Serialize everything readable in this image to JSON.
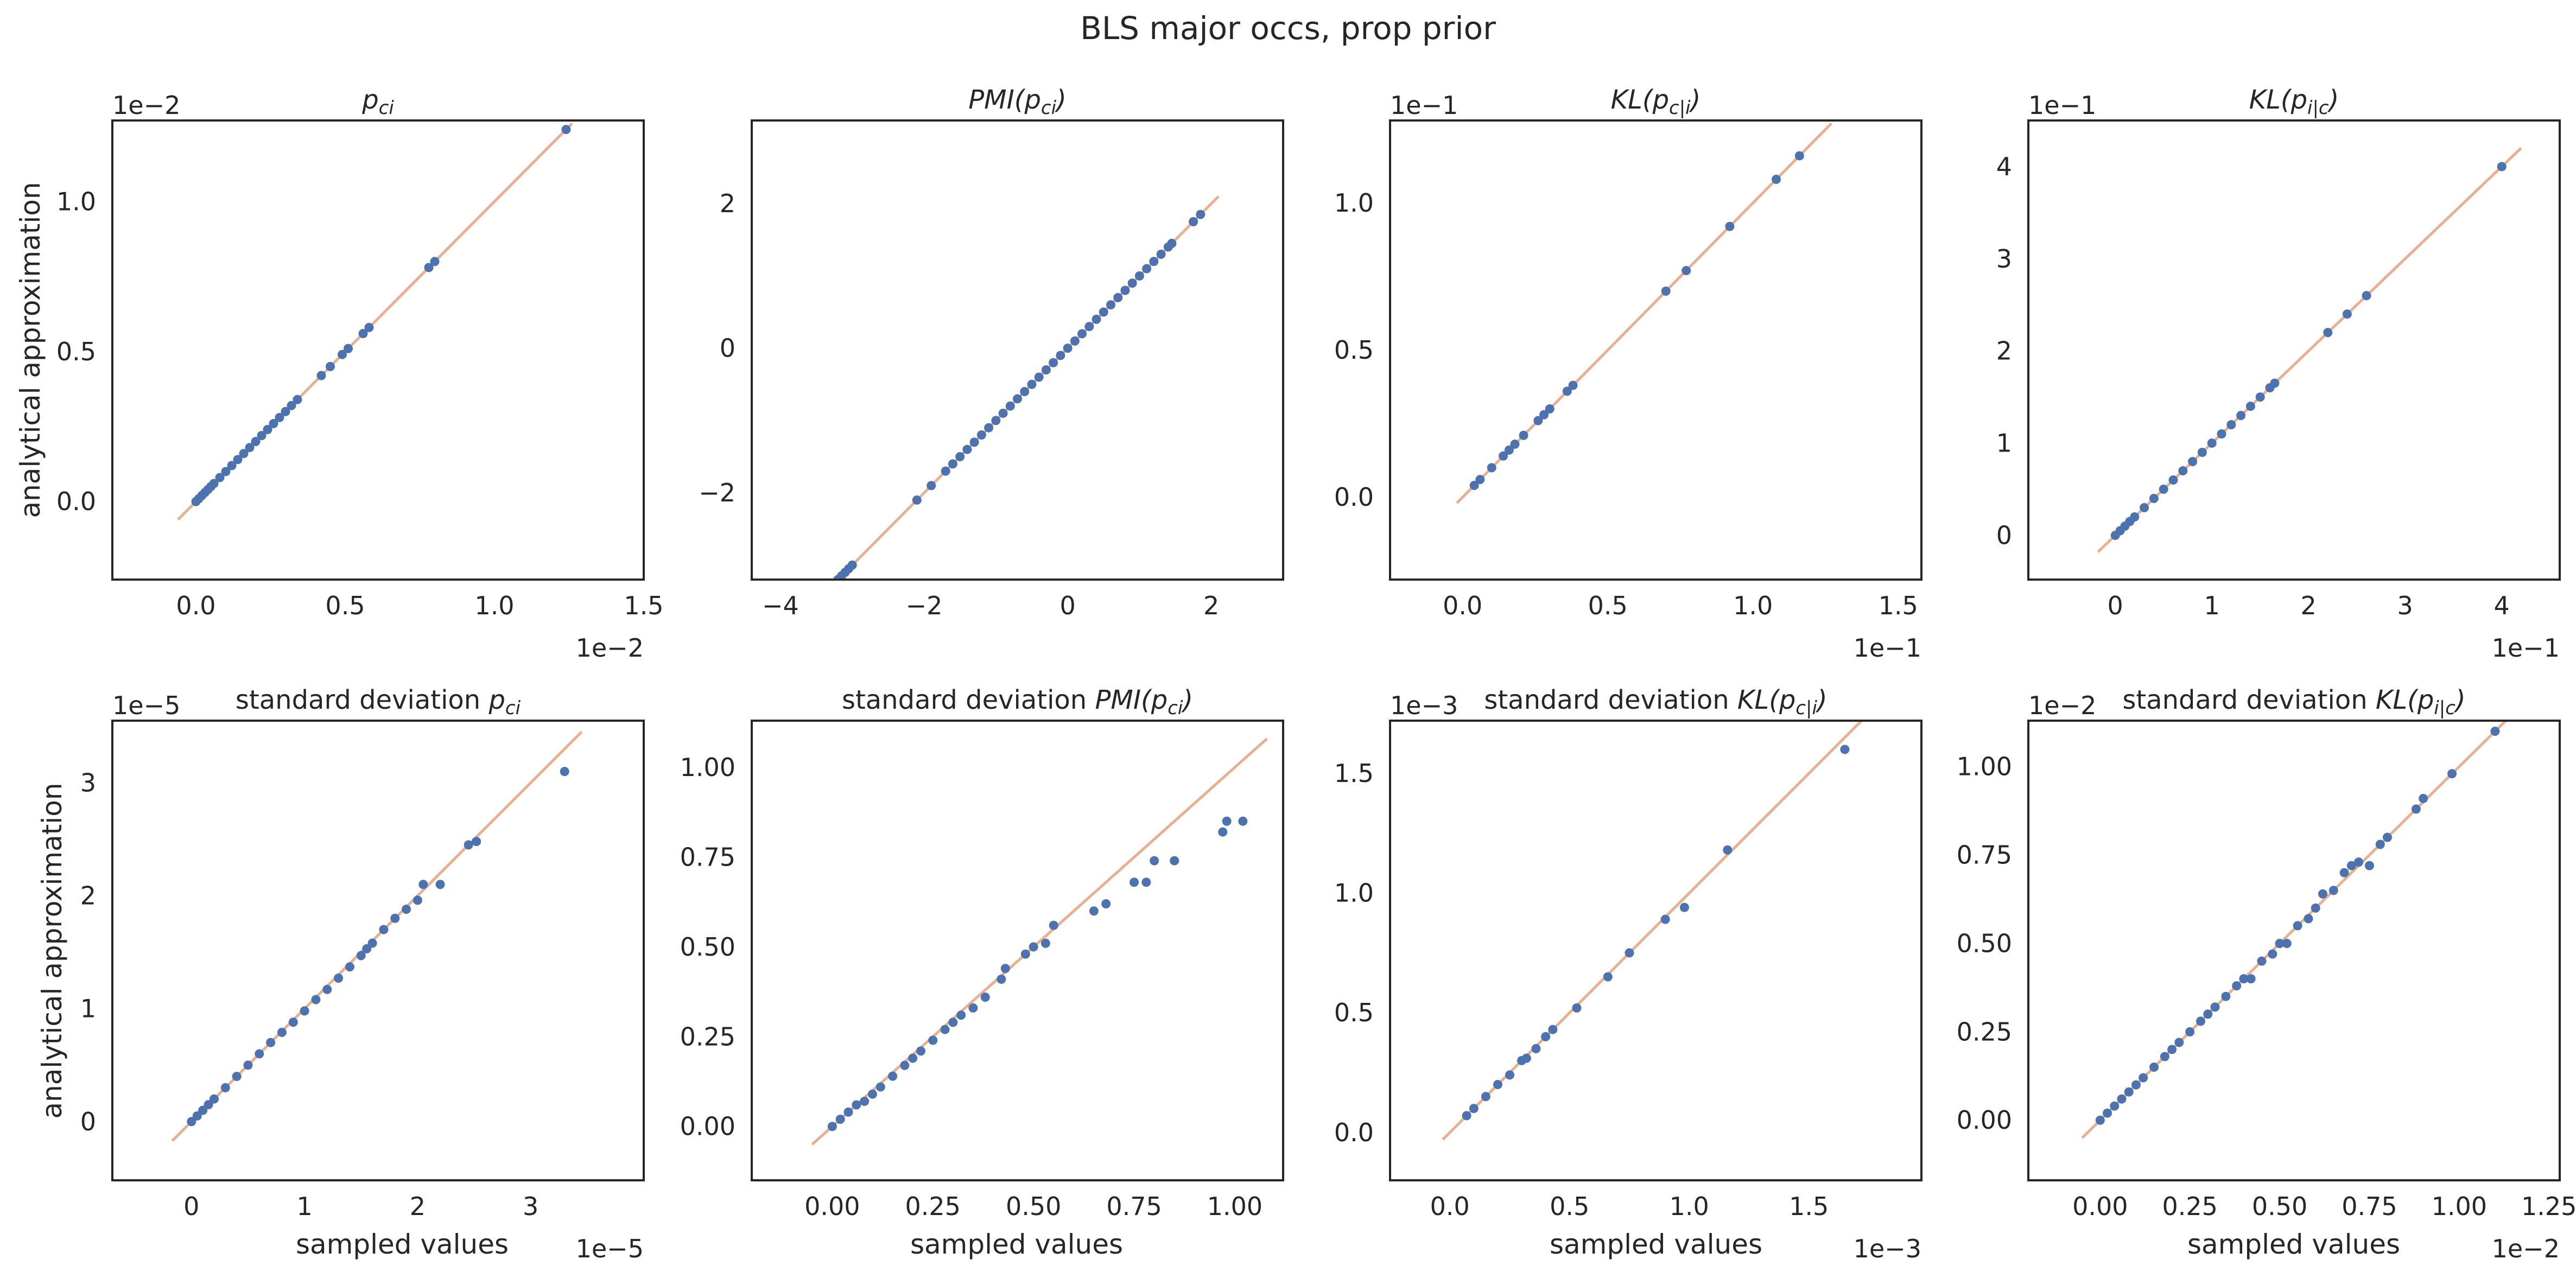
{
  "figure": {
    "suptitle": "BLS major occs, prop prior",
    "ylabel": "analytical approximation",
    "xlabel": "sampled values"
  },
  "colors": {
    "point": "#4c72b0",
    "diagonal": "#dd8452",
    "frame": "#262626"
  },
  "chart_data": [
    {
      "type": "scatter",
      "title": "p_ci",
      "x_scale_label": "1e−2",
      "y_scale_label": "1e−2",
      "xlim": [
        -0.28,
        1.5
      ],
      "ylim": [
        -0.26,
        1.27
      ],
      "xticks": [
        0.0,
        0.5,
        1.0,
        1.5
      ],
      "xtick_labels": [
        "0.0",
        "0.5",
        "1.0",
        "1.5"
      ],
      "yticks": [
        0.0,
        0.5,
        1.0
      ],
      "ytick_labels": [
        "0.0",
        "0.5",
        "1.0"
      ],
      "diag": [
        -0.06,
        1.26
      ],
      "points": [
        [
          0.0,
          0.0
        ],
        [
          0.01,
          0.01
        ],
        [
          0.02,
          0.02
        ],
        [
          0.03,
          0.03
        ],
        [
          0.04,
          0.04
        ],
        [
          0.05,
          0.05
        ],
        [
          0.06,
          0.06
        ],
        [
          0.08,
          0.08
        ],
        [
          0.1,
          0.1
        ],
        [
          0.12,
          0.12
        ],
        [
          0.14,
          0.14
        ],
        [
          0.16,
          0.16
        ],
        [
          0.18,
          0.18
        ],
        [
          0.2,
          0.2
        ],
        [
          0.22,
          0.22
        ],
        [
          0.24,
          0.24
        ],
        [
          0.26,
          0.26
        ],
        [
          0.28,
          0.28
        ],
        [
          0.3,
          0.3
        ],
        [
          0.32,
          0.32
        ],
        [
          0.34,
          0.34
        ],
        [
          0.42,
          0.42
        ],
        [
          0.45,
          0.45
        ],
        [
          0.49,
          0.49
        ],
        [
          0.51,
          0.51
        ],
        [
          0.56,
          0.56
        ],
        [
          0.58,
          0.58
        ],
        [
          0.78,
          0.78
        ],
        [
          0.8,
          0.8
        ],
        [
          1.24,
          1.24
        ]
      ]
    },
    {
      "type": "scatter",
      "title": "PMI(p_ci)",
      "x_scale_label": "",
      "y_scale_label": "",
      "xlim": [
        -4.4,
        3.0
      ],
      "ylim": [
        -3.2,
        3.15
      ],
      "xticks": [
        -4,
        -2,
        0,
        2
      ],
      "xtick_labels": [
        "−4",
        "−2",
        "0",
        "2"
      ],
      "yticks": [
        -2,
        0,
        2
      ],
      "ytick_labels": [
        "−2",
        "0",
        "2"
      ],
      "diag": [
        -3.3,
        2.1
      ],
      "points": [
        [
          -3.3,
          -3.3
        ],
        [
          -3.25,
          -3.25
        ],
        [
          -3.2,
          -3.2
        ],
        [
          -3.15,
          -3.15
        ],
        [
          -3.1,
          -3.1
        ],
        [
          -3.05,
          -3.05
        ],
        [
          -3.0,
          -3.0
        ],
        [
          -2.1,
          -2.1
        ],
        [
          -1.9,
          -1.9
        ],
        [
          -1.7,
          -1.7
        ],
        [
          -1.6,
          -1.6
        ],
        [
          -1.5,
          -1.5
        ],
        [
          -1.4,
          -1.4
        ],
        [
          -1.3,
          -1.3
        ],
        [
          -1.2,
          -1.2
        ],
        [
          -1.1,
          -1.1
        ],
        [
          -1.0,
          -1.0
        ],
        [
          -0.9,
          -0.9
        ],
        [
          -0.8,
          -0.8
        ],
        [
          -0.7,
          -0.7
        ],
        [
          -0.6,
          -0.6
        ],
        [
          -0.5,
          -0.5
        ],
        [
          -0.4,
          -0.4
        ],
        [
          -0.3,
          -0.3
        ],
        [
          -0.2,
          -0.2
        ],
        [
          -0.1,
          -0.1
        ],
        [
          0.0,
          0.0
        ],
        [
          0.1,
          0.1
        ],
        [
          0.2,
          0.2
        ],
        [
          0.3,
          0.3
        ],
        [
          0.4,
          0.4
        ],
        [
          0.5,
          0.5
        ],
        [
          0.6,
          0.6
        ],
        [
          0.7,
          0.7
        ],
        [
          0.8,
          0.8
        ],
        [
          0.9,
          0.9
        ],
        [
          1.0,
          1.0
        ],
        [
          1.1,
          1.1
        ],
        [
          1.2,
          1.2
        ],
        [
          1.3,
          1.3
        ],
        [
          1.4,
          1.4
        ],
        [
          1.45,
          1.45
        ],
        [
          1.75,
          1.75
        ],
        [
          1.85,
          1.85
        ]
      ]
    },
    {
      "type": "scatter",
      "title": "KL(p_c|i)",
      "x_scale_label": "1e−1",
      "y_scale_label": "1e−1",
      "xlim": [
        -0.25,
        1.58
      ],
      "ylim": [
        -0.28,
        1.28
      ],
      "xticks": [
        0.0,
        0.5,
        1.0,
        1.5
      ],
      "xtick_labels": [
        "0.0",
        "0.5",
        "1.0",
        "1.5"
      ],
      "yticks": [
        0.0,
        0.5,
        1.0
      ],
      "ytick_labels": [
        "0.0",
        "0.5",
        "1.0"
      ],
      "diag": [
        -0.02,
        1.27
      ],
      "points": [
        [
          0.04,
          0.04
        ],
        [
          0.06,
          0.06
        ],
        [
          0.1,
          0.1
        ],
        [
          0.14,
          0.14
        ],
        [
          0.16,
          0.16
        ],
        [
          0.18,
          0.18
        ],
        [
          0.21,
          0.21
        ],
        [
          0.26,
          0.26
        ],
        [
          0.28,
          0.28
        ],
        [
          0.3,
          0.3
        ],
        [
          0.36,
          0.36
        ],
        [
          0.38,
          0.38
        ],
        [
          0.7,
          0.7
        ],
        [
          0.77,
          0.77
        ],
        [
          0.92,
          0.92
        ],
        [
          1.08,
          1.08
        ],
        [
          1.16,
          1.16
        ]
      ]
    },
    {
      "type": "scatter",
      "title": "KL(p_i|c)",
      "x_scale_label": "1e−1",
      "y_scale_label": "1e−1",
      "xlim": [
        -0.9,
        4.6
      ],
      "ylim": [
        -0.48,
        4.5
      ],
      "xticks": [
        0,
        1,
        2,
        3,
        4
      ],
      "xtick_labels": [
        "0",
        "1",
        "2",
        "3",
        "4"
      ],
      "yticks": [
        0,
        1,
        2,
        3,
        4
      ],
      "ytick_labels": [
        "0",
        "1",
        "2",
        "3",
        "4"
      ],
      "diag": [
        -0.18,
        4.2
      ],
      "points": [
        [
          0.0,
          0.0
        ],
        [
          0.05,
          0.05
        ],
        [
          0.1,
          0.1
        ],
        [
          0.15,
          0.15
        ],
        [
          0.2,
          0.2
        ],
        [
          0.3,
          0.3
        ],
        [
          0.4,
          0.4
        ],
        [
          0.5,
          0.5
        ],
        [
          0.6,
          0.6
        ],
        [
          0.7,
          0.7
        ],
        [
          0.8,
          0.8
        ],
        [
          0.9,
          0.9
        ],
        [
          1.0,
          1.0
        ],
        [
          1.1,
          1.1
        ],
        [
          1.2,
          1.2
        ],
        [
          1.3,
          1.3
        ],
        [
          1.4,
          1.4
        ],
        [
          1.5,
          1.5
        ],
        [
          1.6,
          1.6
        ],
        [
          1.65,
          1.65
        ],
        [
          2.2,
          2.2
        ],
        [
          2.4,
          2.4
        ],
        [
          2.6,
          2.6
        ],
        [
          4.0,
          4.0
        ]
      ]
    },
    {
      "type": "scatter",
      "title": "standard deviation p_ci",
      "x_scale_label": "1e−5",
      "y_scale_label": "1e−5",
      "xlim": [
        -0.7,
        4.0
      ],
      "ylim": [
        -0.52,
        3.55
      ],
      "xticks": [
        0,
        1,
        2,
        3
      ],
      "xtick_labels": [
        "0",
        "1",
        "2",
        "3"
      ],
      "yticks": [
        0,
        1,
        2,
        3
      ],
      "ytick_labels": [
        "0",
        "1",
        "2",
        "3"
      ],
      "diag": [
        -0.17,
        3.45
      ],
      "points": [
        [
          0.0,
          0.0
        ],
        [
          0.05,
          0.05
        ],
        [
          0.1,
          0.1
        ],
        [
          0.15,
          0.15
        ],
        [
          0.2,
          0.2
        ],
        [
          0.3,
          0.3
        ],
        [
          0.4,
          0.4
        ],
        [
          0.5,
          0.5
        ],
        [
          0.6,
          0.6
        ],
        [
          0.7,
          0.7
        ],
        [
          0.8,
          0.79
        ],
        [
          0.9,
          0.88
        ],
        [
          1.0,
          0.98
        ],
        [
          1.1,
          1.08
        ],
        [
          1.2,
          1.17
        ],
        [
          1.3,
          1.27
        ],
        [
          1.4,
          1.37
        ],
        [
          1.5,
          1.47
        ],
        [
          1.55,
          1.53
        ],
        [
          1.6,
          1.58
        ],
        [
          1.7,
          1.7
        ],
        [
          1.8,
          1.8
        ],
        [
          1.9,
          1.88
        ],
        [
          2.0,
          1.96
        ],
        [
          2.05,
          2.1
        ],
        [
          2.2,
          2.1
        ],
        [
          2.45,
          2.45
        ],
        [
          2.52,
          2.48
        ],
        [
          3.3,
          3.1
        ]
      ]
    },
    {
      "type": "scatter",
      "title": "standard deviation PMI(p_ci)",
      "x_scale_label": "",
      "y_scale_label": "",
      "xlim": [
        -0.2,
        1.12
      ],
      "ylim": [
        -0.15,
        1.13
      ],
      "xticks": [
        0.0,
        0.25,
        0.5,
        0.75,
        1.0
      ],
      "xtick_labels": [
        "0.00",
        "0.25",
        "0.50",
        "0.75",
        "1.00"
      ],
      "yticks": [
        0.0,
        0.25,
        0.5,
        0.75,
        1.0
      ],
      "ytick_labels": [
        "0.00",
        "0.25",
        "0.50",
        "0.75",
        "1.00"
      ],
      "diag": [
        -0.05,
        1.08
      ],
      "points": [
        [
          0.0,
          0.0
        ],
        [
          0.02,
          0.02
        ],
        [
          0.04,
          0.04
        ],
        [
          0.06,
          0.06
        ],
        [
          0.08,
          0.07
        ],
        [
          0.1,
          0.09
        ],
        [
          0.12,
          0.11
        ],
        [
          0.15,
          0.14
        ],
        [
          0.18,
          0.17
        ],
        [
          0.2,
          0.19
        ],
        [
          0.22,
          0.21
        ],
        [
          0.25,
          0.24
        ],
        [
          0.28,
          0.27
        ],
        [
          0.3,
          0.29
        ],
        [
          0.32,
          0.31
        ],
        [
          0.35,
          0.33
        ],
        [
          0.38,
          0.36
        ],
        [
          0.42,
          0.41
        ],
        [
          0.43,
          0.44
        ],
        [
          0.48,
          0.48
        ],
        [
          0.5,
          0.5
        ],
        [
          0.53,
          0.51
        ],
        [
          0.55,
          0.56
        ],
        [
          0.65,
          0.6
        ],
        [
          0.68,
          0.62
        ],
        [
          0.75,
          0.68
        ],
        [
          0.78,
          0.68
        ],
        [
          0.8,
          0.74
        ],
        [
          0.85,
          0.74
        ],
        [
          0.97,
          0.82
        ],
        [
          0.98,
          0.85
        ],
        [
          1.02,
          0.85
        ]
      ]
    },
    {
      "type": "scatter",
      "title": "standard deviation KL(p_c|i)",
      "x_scale_label": "1e−3",
      "y_scale_label": "1e−3",
      "xlim": [
        -0.25,
        1.97
      ],
      "ylim": [
        -0.2,
        1.72
      ],
      "xticks": [
        0.0,
        0.5,
        1.0,
        1.5
      ],
      "xtick_labels": [
        "0.0",
        "0.5",
        "1.0",
        "1.5"
      ],
      "yticks": [
        0.0,
        0.5,
        1.0,
        1.5
      ],
      "ytick_labels": [
        "0.0",
        "0.5",
        "1.0",
        "1.5"
      ],
      "diag": [
        -0.03,
        1.72
      ],
      "points": [
        [
          0.07,
          0.07
        ],
        [
          0.1,
          0.1
        ],
        [
          0.15,
          0.15
        ],
        [
          0.2,
          0.2
        ],
        [
          0.25,
          0.24
        ],
        [
          0.3,
          0.3
        ],
        [
          0.32,
          0.31
        ],
        [
          0.36,
          0.35
        ],
        [
          0.4,
          0.4
        ],
        [
          0.43,
          0.43
        ],
        [
          0.53,
          0.52
        ],
        [
          0.66,
          0.65
        ],
        [
          0.75,
          0.75
        ],
        [
          0.9,
          0.89
        ],
        [
          0.98,
          0.94
        ],
        [
          1.16,
          1.18
        ],
        [
          1.65,
          1.6
        ]
      ]
    },
    {
      "type": "scatter",
      "title": "standard deviation KL(p_i|c)",
      "x_scale_label": "1e−2",
      "y_scale_label": "1e−2",
      "xlim": [
        -0.2,
        1.28
      ],
      "ylim": [
        -0.17,
        1.13
      ],
      "xticks": [
        0.0,
        0.25,
        0.5,
        0.75,
        1.0,
        1.25
      ],
      "xtick_labels": [
        "0.00",
        "0.25",
        "0.50",
        "0.75",
        "1.00",
        "1.25"
      ],
      "yticks": [
        0.0,
        0.25,
        0.5,
        0.75,
        1.0
      ],
      "ytick_labels": [
        "0.00",
        "0.25",
        "0.50",
        "0.75",
        "1.00"
      ],
      "diag": [
        -0.05,
        1.13
      ],
      "points": [
        [
          0.0,
          0.0
        ],
        [
          0.02,
          0.02
        ],
        [
          0.04,
          0.04
        ],
        [
          0.06,
          0.06
        ],
        [
          0.08,
          0.08
        ],
        [
          0.1,
          0.1
        ],
        [
          0.12,
          0.12
        ],
        [
          0.15,
          0.15
        ],
        [
          0.18,
          0.18
        ],
        [
          0.2,
          0.2
        ],
        [
          0.22,
          0.22
        ],
        [
          0.25,
          0.25
        ],
        [
          0.28,
          0.28
        ],
        [
          0.3,
          0.3
        ],
        [
          0.32,
          0.32
        ],
        [
          0.35,
          0.35
        ],
        [
          0.38,
          0.38
        ],
        [
          0.4,
          0.4
        ],
        [
          0.42,
          0.4
        ],
        [
          0.45,
          0.45
        ],
        [
          0.48,
          0.47
        ],
        [
          0.5,
          0.5
        ],
        [
          0.52,
          0.5
        ],
        [
          0.55,
          0.55
        ],
        [
          0.58,
          0.57
        ],
        [
          0.6,
          0.6
        ],
        [
          0.62,
          0.64
        ],
        [
          0.65,
          0.65
        ],
        [
          0.68,
          0.7
        ],
        [
          0.7,
          0.72
        ],
        [
          0.72,
          0.73
        ],
        [
          0.75,
          0.72
        ],
        [
          0.78,
          0.78
        ],
        [
          0.8,
          0.8
        ],
        [
          0.88,
          0.88
        ],
        [
          0.9,
          0.91
        ],
        [
          0.98,
          0.98
        ],
        [
          1.1,
          1.1
        ]
      ]
    }
  ]
}
